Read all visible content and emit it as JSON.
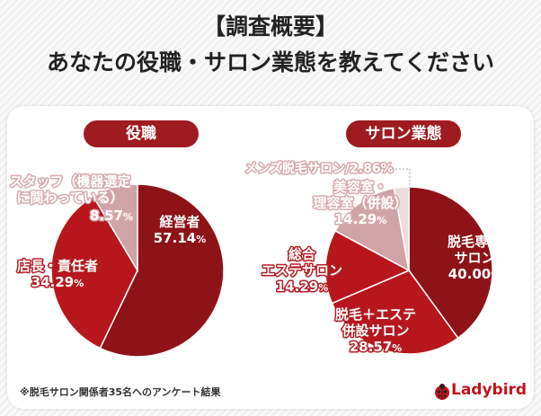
{
  "title": {
    "line1": "【調査概要】",
    "line2": "あなたの役職・サロン業態を教えてください"
  },
  "chart_data": [
    {
      "type": "pie",
      "title": "役職",
      "slices": [
        {
          "label": "経営者",
          "value": 57.14,
          "value_text": "57.14",
          "color": "#8e1319"
        },
        {
          "label": "店長・責任者",
          "value": 34.29,
          "value_text": "34.29",
          "color": "#b8161d"
        },
        {
          "label": "スタッフ（機器選定に関わっている）",
          "label_lines": [
            "スタッフ（機器選定",
            "に関わっている）"
          ],
          "value": 8.57,
          "value_text": "8.57",
          "color": "#d0a3a6"
        }
      ]
    },
    {
      "type": "pie",
      "title": "サロン業態",
      "slices": [
        {
          "label": "脱毛専門サロン",
          "label_lines": [
            "脱毛専門",
            "サロン"
          ],
          "value": 40.0,
          "value_text": "40.00",
          "color": "#8e1319"
        },
        {
          "label": "脱毛＋エステ併設サロン",
          "label_lines": [
            "脱毛＋エステ",
            "併設サロン"
          ],
          "value": 28.57,
          "value_text": "28.57",
          "color": "#b8161d"
        },
        {
          "label": "総合エステサロン",
          "label_lines": [
            "総合",
            "エステサロン"
          ],
          "value": 14.29,
          "value_text": "14.29",
          "color": "#b8161d"
        },
        {
          "label": "美容室・理容室（併設）",
          "label_lines": [
            "美容室・",
            "理容室（併設）"
          ],
          "value": 14.29,
          "value_text": "14.29",
          "color": "#d0a3a6"
        },
        {
          "label": "メンズ脱毛サロン",
          "value": 2.86,
          "value_text": "2.86",
          "color": "#ecdcdd"
        }
      ]
    }
  ],
  "unit": "%",
  "footnote": "※脱毛サロン関係者35名へのアンケート結果",
  "brand": {
    "name": "Ladybird"
  }
}
